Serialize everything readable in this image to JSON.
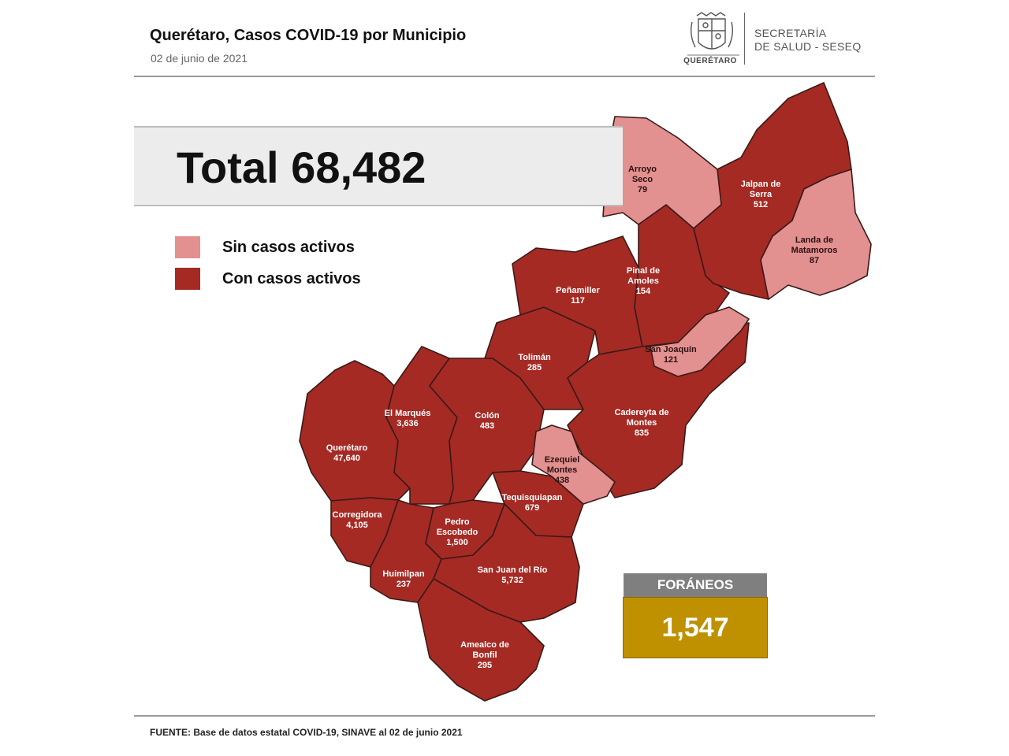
{
  "header": {
    "title": "Querétaro, Casos COVID-19 por Municipio",
    "date": "02 de junio de 2021",
    "seal_caption": "QUERÉTARO",
    "dept_line1": "SECRETARÍA",
    "dept_line2": "DE SALUD - SESEQ"
  },
  "total": "Total 68,482",
  "legend": [
    {
      "label": "Sin casos activos",
      "color": "#e39090"
    },
    {
      "label": "Con casos activos",
      "color": "#a52a24"
    }
  ],
  "municipalities": [
    {
      "id": "arroyo-seco",
      "lines": [
        "Arroyo",
        "Seco",
        "79"
      ],
      "active": false
    },
    {
      "id": "jalpan-de-serra",
      "lines": [
        "Jalpan de",
        "Serra",
        "512"
      ],
      "active": true
    },
    {
      "id": "landa-de-matamoros",
      "lines": [
        "Landa de",
        "Matamoros",
        "87"
      ],
      "active": false
    },
    {
      "id": "pinal-de-amoles",
      "lines": [
        "Pinal de",
        "Amoles",
        "154"
      ],
      "active": true
    },
    {
      "id": "penamiller",
      "lines": [
        "Peñamiller",
        "117"
      ],
      "active": true
    },
    {
      "id": "san-joaquin",
      "lines": [
        "San Joaquín",
        "121"
      ],
      "active": false
    },
    {
      "id": "toliman",
      "lines": [
        "Tolimán",
        "285"
      ],
      "active": true
    },
    {
      "id": "cadereyta-de-montes",
      "lines": [
        "Cadereyta de",
        "Montes",
        "835"
      ],
      "active": true
    },
    {
      "id": "el-marques",
      "lines": [
        "El  Marqués",
        "3,636"
      ],
      "active": true
    },
    {
      "id": "colon",
      "lines": [
        "Colón",
        "483"
      ],
      "active": true
    },
    {
      "id": "ezequiel-montes",
      "lines": [
        "Ezequiel",
        "Montes",
        "438"
      ],
      "active": false
    },
    {
      "id": "queretaro",
      "lines": [
        "Querétaro",
        "47,640"
      ],
      "active": true
    },
    {
      "id": "tequisquiapan",
      "lines": [
        "Tequisquiapan",
        "679"
      ],
      "active": true
    },
    {
      "id": "corregidora",
      "lines": [
        "Corregidora",
        "4,105"
      ],
      "active": true
    },
    {
      "id": "pedro-escobedo",
      "lines": [
        "Pedro",
        "Escobedo",
        "1,500"
      ],
      "active": true
    },
    {
      "id": "huimilpan",
      "lines": [
        "Huimilpan",
        "237"
      ],
      "active": true
    },
    {
      "id": "san-juan-del-rio",
      "lines": [
        "San Juan del Río",
        "5,732"
      ],
      "active": true
    },
    {
      "id": "amealco-de-bonfil",
      "lines": [
        "Amealco de",
        "Bonfil",
        "295"
      ],
      "active": true
    }
  ],
  "foraneos": {
    "label": "FORÁNEOS",
    "value": "1,547",
    "color": "#bf9000"
  },
  "source": "FUENTE:  Base de datos estatal COVID-19,  SINAVE  al 02 de junio 2021"
}
